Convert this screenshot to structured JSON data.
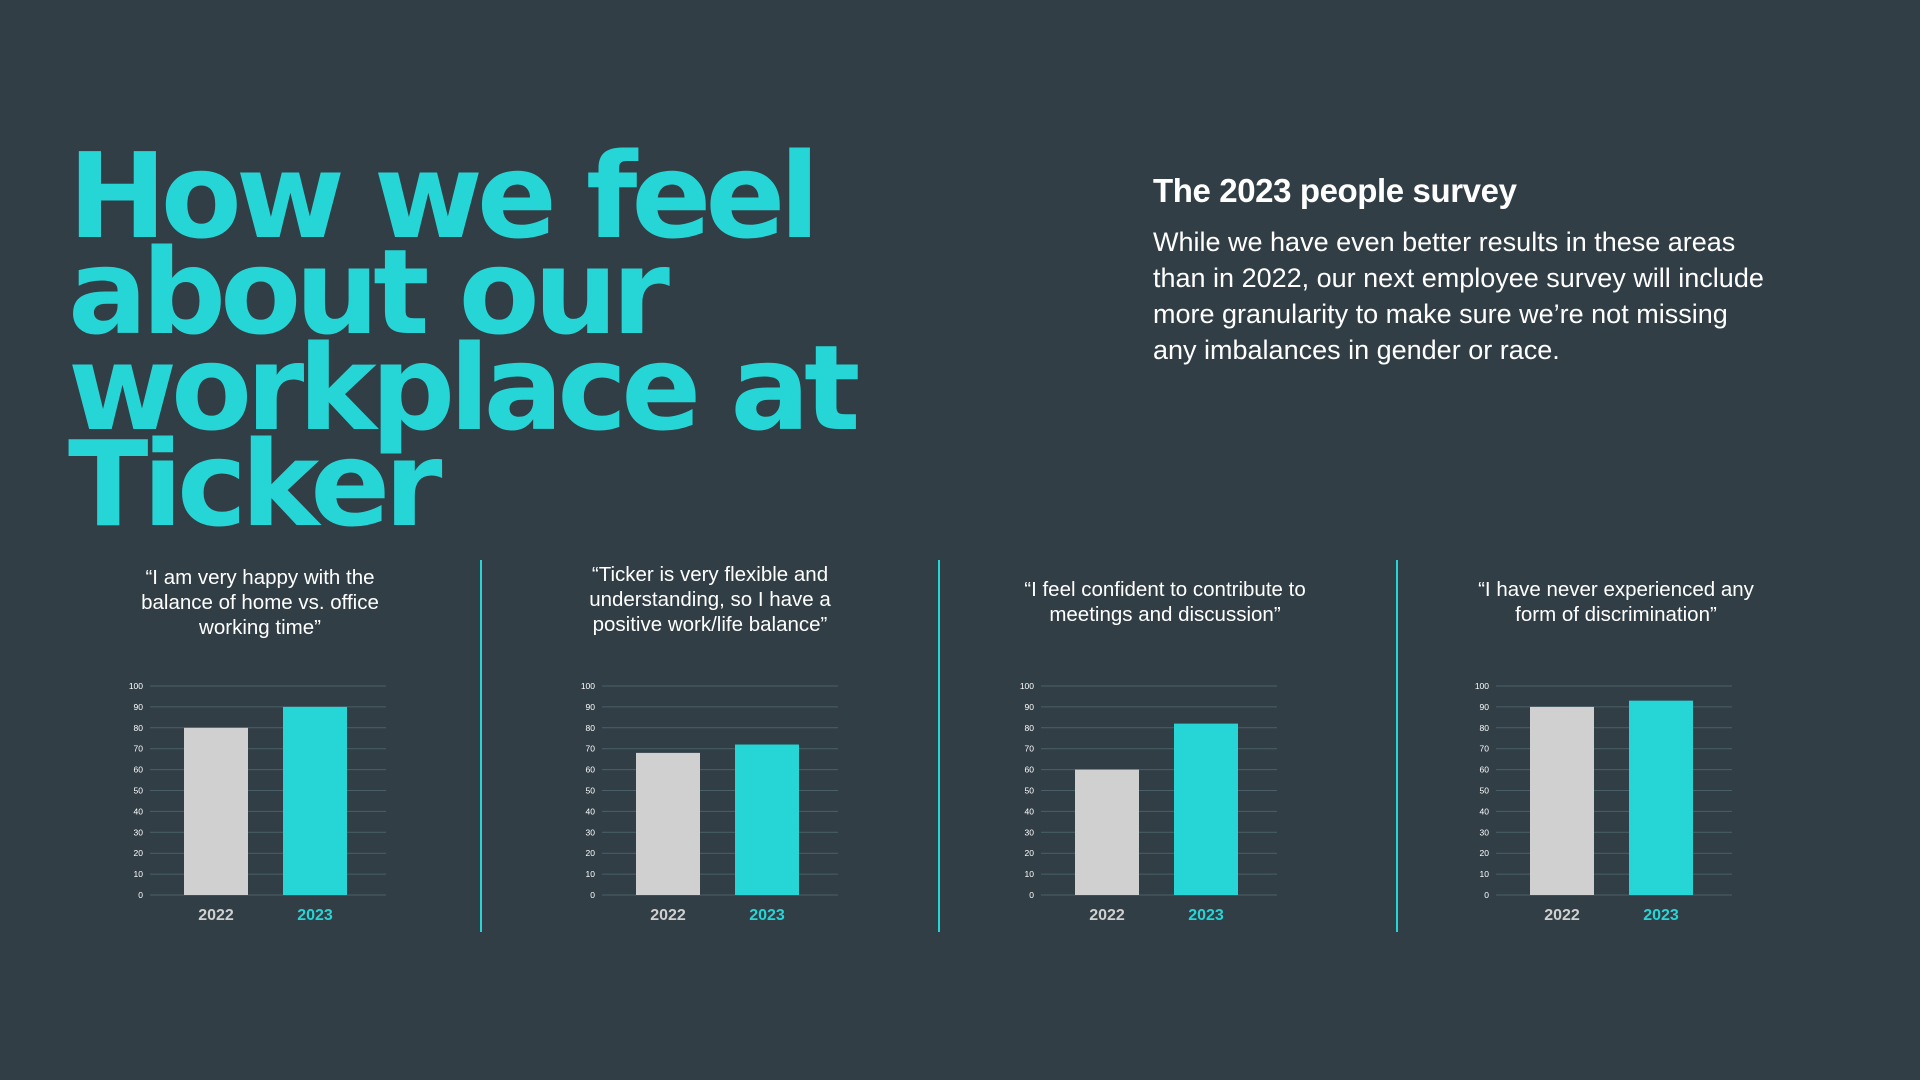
{
  "title": "How we feel about our workplace at Ticker",
  "survey": {
    "title": "The 2023 people survey",
    "body": "While we have even better results in these areas than in 2022, our next employee survey will include more granularity to make sure we’re not missing any imbalances in gender or race."
  },
  "colors": {
    "background": "#313e46",
    "accent": "#26d5d6",
    "bar_2022": "#d0d0d0",
    "bar_2023": "#26d5d6"
  },
  "chart_data": [
    {
      "type": "bar",
      "title": "“I am very happy with the balance of home vs. office working time”",
      "categories": [
        "2022",
        "2023"
      ],
      "values": [
        80,
        90
      ],
      "ylim": [
        0,
        100
      ],
      "yticks": [
        "0",
        "10",
        "20",
        "30",
        "40",
        "50",
        "60",
        "70",
        "80",
        "90",
        "100"
      ],
      "xlabel": "",
      "ylabel": "",
      "grid": true
    },
    {
      "type": "bar",
      "title": "“Ticker is very flexible and understanding, so I have a positive work/life balance”",
      "categories": [
        "2022",
        "2023"
      ],
      "values": [
        68,
        72
      ],
      "ylim": [
        0,
        100
      ],
      "yticks": [
        "0",
        "10",
        "20",
        "30",
        "40",
        "50",
        "60",
        "70",
        "80",
        "90",
        "100"
      ],
      "xlabel": "",
      "ylabel": "",
      "grid": true
    },
    {
      "type": "bar",
      "title": "“I feel confident to contribute to meetings and discussion”",
      "categories": [
        "2022",
        "2023"
      ],
      "values": [
        60,
        82
      ],
      "ylim": [
        0,
        100
      ],
      "yticks": [
        "0",
        "10",
        "20",
        "30",
        "40",
        "50",
        "60",
        "70",
        "80",
        "90",
        "100"
      ],
      "xlabel": "",
      "ylabel": "",
      "grid": true
    },
    {
      "type": "bar",
      "title": "“I have never experienced any form of discrimination”",
      "categories": [
        "2022",
        "2023"
      ],
      "values": [
        90,
        93
      ],
      "ylim": [
        0,
        100
      ],
      "yticks": [
        "0",
        "10",
        "20",
        "30",
        "40",
        "50",
        "60",
        "70",
        "80",
        "90",
        "100"
      ],
      "xlabel": "",
      "ylabel": "",
      "grid": true
    }
  ]
}
